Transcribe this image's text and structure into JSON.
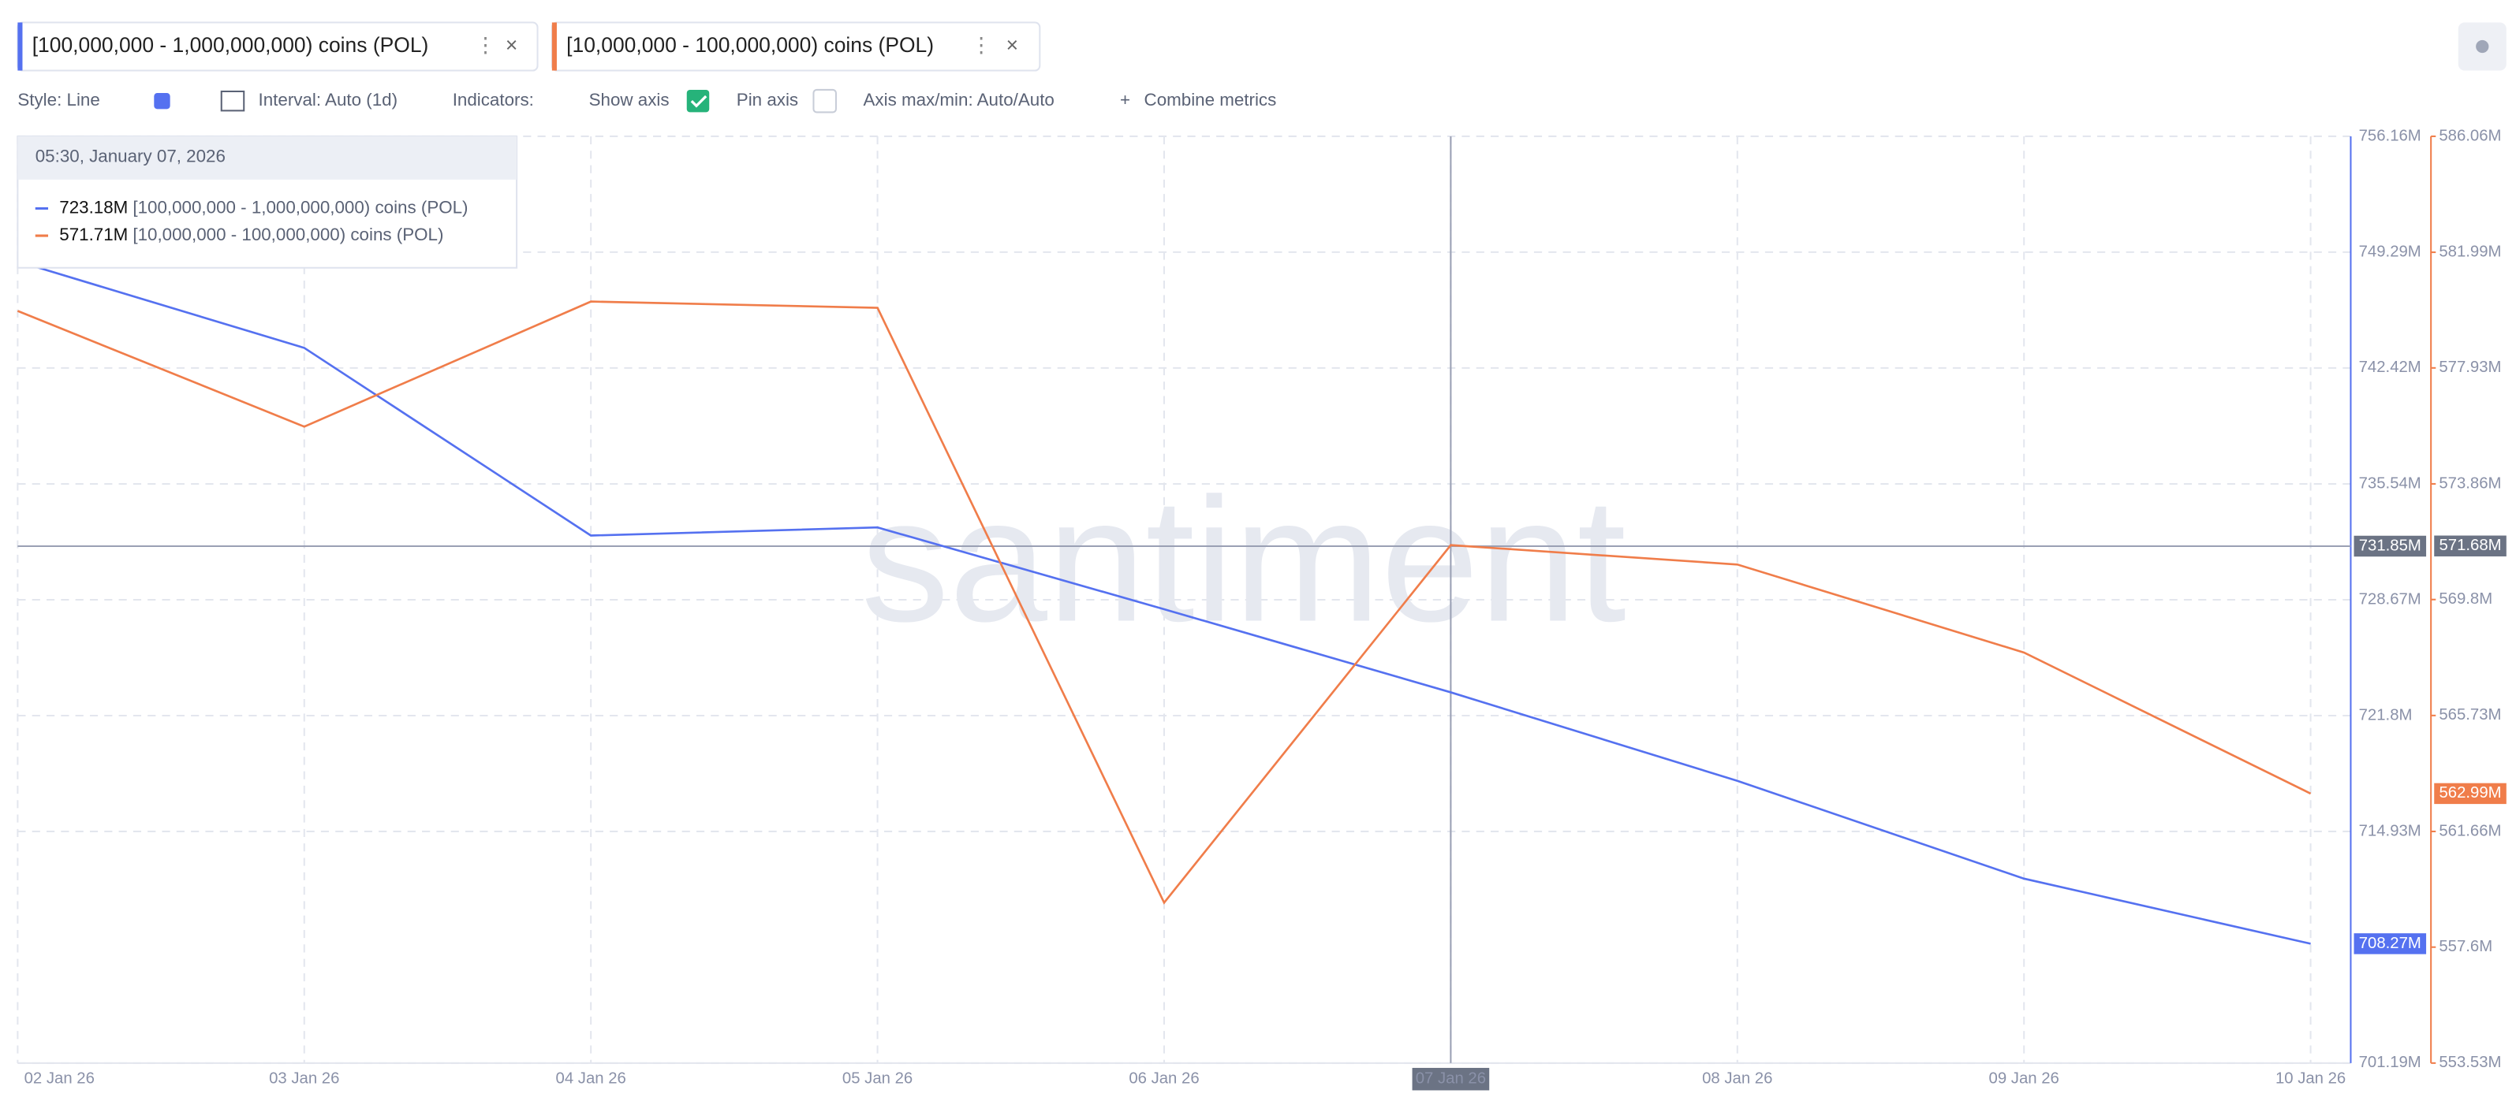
{
  "tabs": [
    "[100,000,000 - 1,000,000,000) coins (POL)",
    "[10,000,000 - 100,000,000) coins (POL)"
  ],
  "toolbar": {
    "style": "Style: Line",
    "interval": "Interval: Auto (1d)",
    "indicators": "Indicators:",
    "show_axis": "Show axis",
    "pin_axis": "Pin axis",
    "axis_range": "Axis max/min: Auto/Auto",
    "combine": "Combine metrics"
  },
  "tooltip": {
    "title": "05:30, January 07, 2026",
    "rows": [
      "723.18M",
      "571.71M"
    ]
  },
  "watermark": "santiment",
  "chart_data": {
    "type": "line",
    "categories": [
      "02 Jan 26",
      "03 Jan 26",
      "04 Jan 26",
      "05 Jan 26",
      "06 Jan 26",
      "07 Jan 26",
      "08 Jan 26",
      "09 Jan 26",
      "10 Jan 26"
    ],
    "series": [
      {
        "name": "[100,000,000 - 1,000,000,000) coins (POL)",
        "color": "#5571f0",
        "axis": "y",
        "values": [
          748.74,
          743.61,
          732.48,
          732.96,
          728.11,
          723.18,
          717.93,
          712.13,
          708.27
        ],
        "last_label": "708.27M"
      },
      {
        "name": "[10,000,000 - 100,000,000) coins (POL)",
        "color": "#f07d4a",
        "axis": "y2",
        "values": [
          579.93,
          575.87,
          580.26,
          580.04,
          559.16,
          571.71,
          571.03,
          567.94,
          562.99
        ],
        "last_label": "562.99M"
      }
    ],
    "ylim": [
      701.19,
      756.16
    ],
    "yticks": [
      {
        "value": 701.19,
        "label": "701.19M"
      },
      {
        "value": 714.93,
        "label": "714.93M"
      },
      {
        "value": 721.8,
        "label": "721.8M"
      },
      {
        "value": 728.67,
        "label": "728.67M"
      },
      {
        "value": 735.54,
        "label": "735.54M"
      },
      {
        "value": 742.42,
        "label": "742.42M"
      },
      {
        "value": 749.29,
        "label": "749.29M"
      },
      {
        "value": 756.16,
        "label": "756.16M"
      }
    ],
    "y2lim": [
      553.53,
      586.06
    ],
    "y2ticks": [
      {
        "value": 553.53,
        "label": "553.53M"
      },
      {
        "value": 557.6,
        "label": "557.6M"
      },
      {
        "value": 561.66,
        "label": "561.66M"
      },
      {
        "value": 565.73,
        "label": "565.73M"
      },
      {
        "value": 569.8,
        "label": "569.8M"
      },
      {
        "value": 573.86,
        "label": "573.86M"
      },
      {
        "value": 577.93,
        "label": "577.93M"
      },
      {
        "value": 581.99,
        "label": "581.99M"
      },
      {
        "value": 586.06,
        "label": "586.06M"
      }
    ],
    "crosshair": {
      "y": 731.85,
      "y_label": "731.85M",
      "y2": 571.68,
      "y2_label": "571.68M"
    },
    "grid": true
  }
}
